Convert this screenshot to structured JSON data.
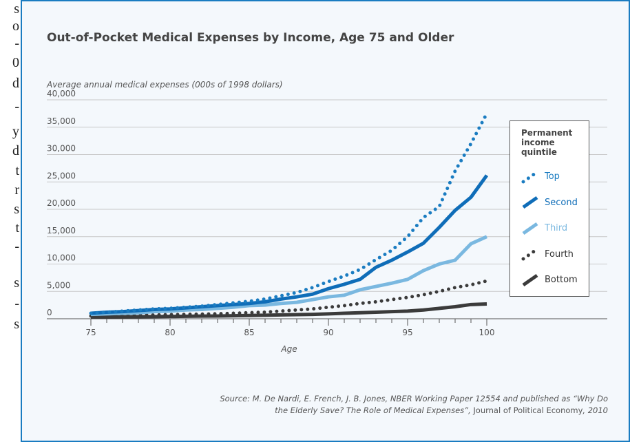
{
  "margin_text": [
    "s",
    "o",
    "-",
    "0",
    "d",
    "-",
    "y",
    "d",
    "t",
    "r",
    "s",
    "t",
    "-",
    "s",
    "-",
    "s"
  ],
  "chart_data": {
    "type": "line",
    "title": "Out-of-Pocket Medical Expenses by Income, Age 75 and Older",
    "y_label": "Average annual medical expenses (000s of 1998 dollars)",
    "x_label": "Age",
    "x": [
      75,
      76,
      77,
      78,
      79,
      80,
      81,
      82,
      83,
      84,
      85,
      86,
      87,
      88,
      89,
      90,
      91,
      92,
      93,
      94,
      95,
      96,
      97,
      98,
      99,
      100
    ],
    "xlim": [
      75,
      100
    ],
    "xticks": [
      75,
      80,
      85,
      90,
      95,
      100
    ],
    "ylim": [
      0,
      40000
    ],
    "yticks": [
      0,
      {
        "value": 5000,
        "label": "5,000"
      },
      {
        "value": 10000,
        "label": "10,000"
      },
      {
        "value": 15000,
        "label": "15,000"
      },
      {
        "value": 20000,
        "label": "20,000"
      },
      {
        "value": 25000,
        "label": "25,000"
      },
      {
        "value": 30000,
        "label": "30,000"
      },
      {
        "value": 35000,
        "label": "35,000"
      },
      {
        "value": 40000,
        "label": "40,000"
      }
    ],
    "grid": true,
    "legend_title": "Permanent income quintile",
    "legend_position": "right",
    "series": [
      {
        "name": "Top",
        "color": "#1a7cc1",
        "style": "dotted",
        "values": [
          1000,
          1200,
          1400,
          1600,
          1800,
          1900,
          2100,
          2300,
          2600,
          2900,
          3200,
          3600,
          4200,
          4800,
          5700,
          6800,
          7800,
          9000,
          10800,
          12500,
          15000,
          18500,
          20500,
          27000,
          32000,
          37500
        ]
      },
      {
        "name": "Second",
        "color": "#0f6db8",
        "style": "solid",
        "values": [
          1000,
          1200,
          1300,
          1500,
          1700,
          1800,
          2000,
          2200,
          2400,
          2600,
          2800,
          3100,
          3600,
          4000,
          4500,
          5500,
          6300,
          7200,
          9400,
          10700,
          12200,
          13800,
          16700,
          19800,
          22200,
          26200
        ]
      },
      {
        "name": "Third",
        "color": "#7ab8e0",
        "style": "solid",
        "values": [
          800,
          900,
          1000,
          1100,
          1300,
          1400,
          1600,
          1700,
          1900,
          2100,
          2400,
          2500,
          2800,
          3000,
          3500,
          4000,
          4300,
          5300,
          5900,
          6500,
          7200,
          8800,
          10000,
          10700,
          13700,
          15000
        ]
      },
      {
        "name": "Fourth",
        "color": "#3b3b3b",
        "style": "dotted",
        "values": [
          500,
          550,
          600,
          650,
          700,
          750,
          800,
          850,
          900,
          1000,
          1100,
          1200,
          1400,
          1600,
          1800,
          2100,
          2400,
          2800,
          3100,
          3500,
          3900,
          4400,
          5000,
          5700,
          6200,
          6900
        ]
      },
      {
        "name": "Bottom",
        "color": "#3b3b3b",
        "style": "solid",
        "values": [
          300,
          320,
          350,
          380,
          400,
          420,
          450,
          480,
          500,
          550,
          600,
          650,
          700,
          750,
          800,
          900,
          1000,
          1100,
          1200,
          1300,
          1400,
          1600,
          1900,
          2200,
          2600,
          2700
        ]
      }
    ],
    "source": [
      "Source: M. De Nardi, E. French, J. B. Jones, NBER Working Paper 12554 and published as “Why Do the Elderly Save? The Role of Medical Expenses”, ",
      "Journal of Political Economy",
      ", 2010"
    ]
  }
}
